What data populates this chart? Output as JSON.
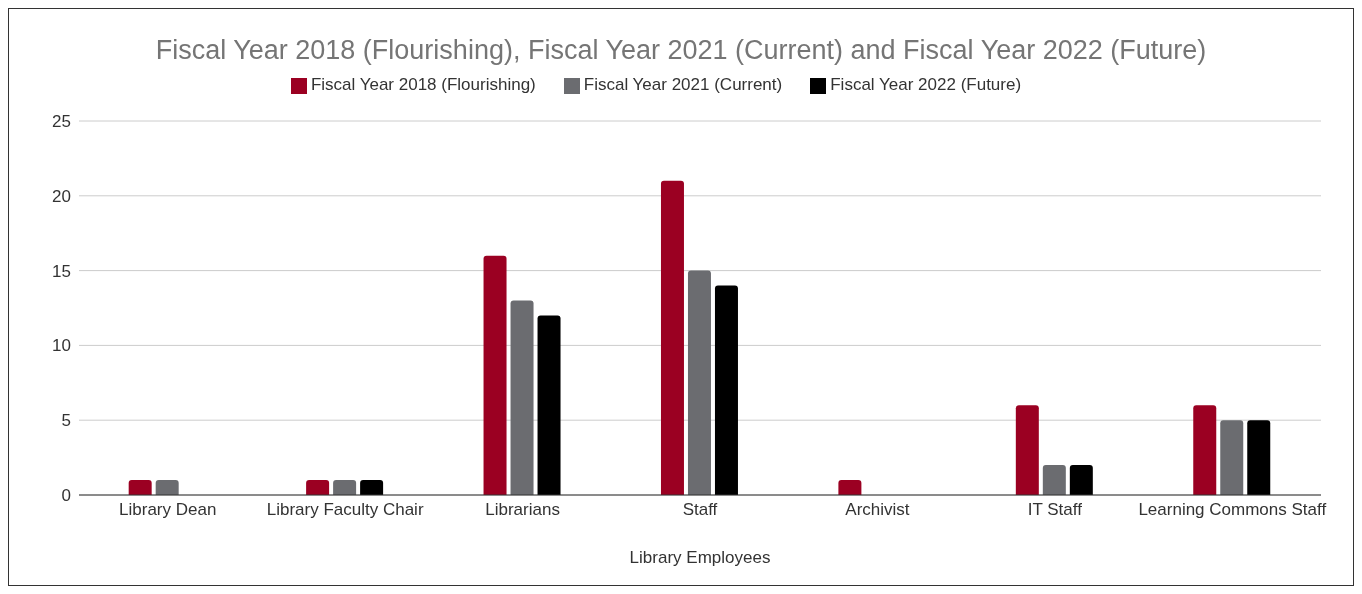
{
  "chart_data": {
    "type": "bar",
    "title": "Fiscal Year 2018 (Flourishing), Fiscal Year 2021 (Current) and Fiscal Year 2022 (Future)",
    "xlabel": "Library Employees",
    "categories": [
      "Library Dean",
      "Library Faculty Chair",
      "Librarians",
      "Staff",
      "Archivist",
      "IT Staff",
      "Learning Commons Staff"
    ],
    "series": [
      {
        "name": "Fiscal Year 2018 (Flourishing)",
        "color": "#9b0022",
        "values": [
          1,
          1,
          16,
          21,
          1,
          6,
          6
        ]
      },
      {
        "name": "Fiscal Year 2021 (Current)",
        "color": "#6b6c70",
        "values": [
          1,
          1,
          13,
          15,
          0,
          2,
          5
        ]
      },
      {
        "name": "Fiscal Year 2022 (Future)",
        "color": "#000000",
        "values": [
          0,
          1,
          12,
          14,
          0,
          2,
          5
        ]
      }
    ],
    "ylim": [
      0,
      25
    ],
    "yticks": [
      0,
      5,
      10,
      15,
      20,
      25
    ],
    "grid": "y",
    "legend": "top"
  }
}
